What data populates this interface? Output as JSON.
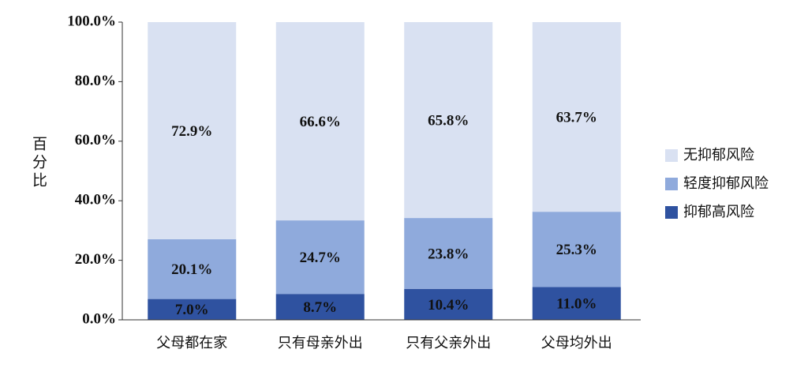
{
  "chart_data": {
    "type": "stacked_bar",
    "y_label": "百分比",
    "categories": [
      "父母都在家",
      "只有母亲外出",
      "只有父亲外出",
      "父母均外出"
    ],
    "series": [
      {
        "name": "抑郁高风险",
        "color": "#2f52a0",
        "values": [
          7.0,
          8.7,
          10.4,
          11.0
        ],
        "value_labels": [
          "7.0%",
          "8.7%",
          "10.4%",
          "11.0%"
        ]
      },
      {
        "name": "轻度抑郁风险",
        "color": "#8faadc",
        "values": [
          20.1,
          24.7,
          23.8,
          25.3
        ],
        "value_labels": [
          "20.1%",
          "24.7%",
          "23.8%",
          "25.3%"
        ]
      },
      {
        "name": "无抑郁风险",
        "color": "#d9e1f2",
        "values": [
          72.9,
          66.6,
          65.8,
          63.7
        ],
        "value_labels": [
          "72.9%",
          "66.6%",
          "65.8%",
          "63.7%"
        ]
      }
    ],
    "ylim": [
      0,
      100
    ],
    "yticks": [
      {
        "value": 0,
        "label": "0.0%"
      },
      {
        "value": 20,
        "label": "20.0%"
      },
      {
        "value": 40,
        "label": "40.0%"
      },
      {
        "value": 60,
        "label": "60.0%"
      },
      {
        "value": 80,
        "label": "80.0%"
      },
      {
        "value": 100,
        "label": "100.0%"
      }
    ],
    "legend": "right"
  }
}
